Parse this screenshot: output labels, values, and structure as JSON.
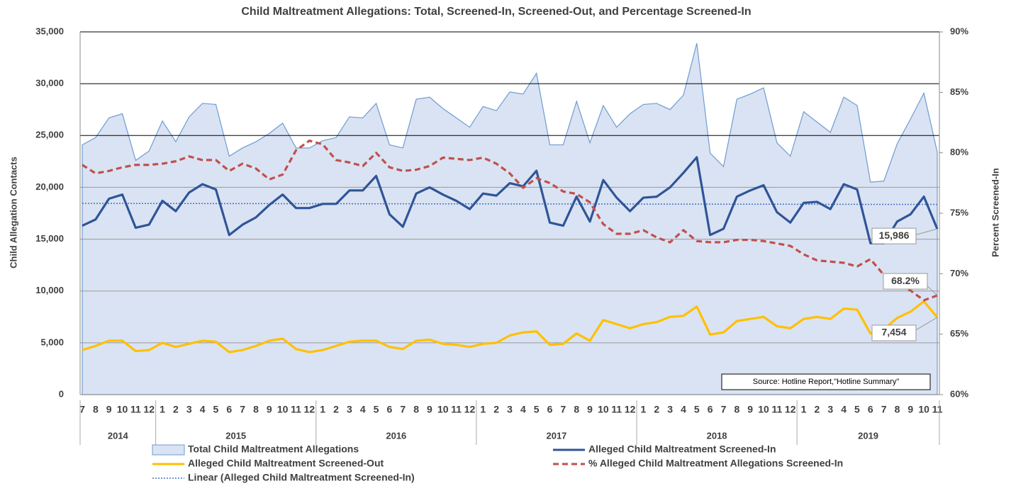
{
  "chart_data": {
    "type": "line",
    "title": "Child Maltreatment Allegations: Total, Screened-In, Screened-Out, and Percentage Screened-In",
    "y_label": "Child Allegation Contacts",
    "y2_label": "Percent Screened-In",
    "source": "Source: Hotline Report,\"Hotline Summary\"",
    "groups": [
      {
        "name": "2014",
        "categories": [
          "7",
          "8",
          "9",
          "10",
          "11",
          "12"
        ]
      },
      {
        "name": "2015",
        "categories": [
          "1",
          "2",
          "3",
          "4",
          "5",
          "6",
          "7",
          "8",
          "9",
          "10",
          "11",
          "12"
        ]
      },
      {
        "name": "2016",
        "categories": [
          "1",
          "2",
          "3",
          "4",
          "5",
          "6",
          "7",
          "8",
          "9",
          "10",
          "11",
          "12"
        ]
      },
      {
        "name": "2017",
        "categories": [
          "1",
          "2",
          "3",
          "4",
          "5",
          "6",
          "7",
          "8",
          "9",
          "10",
          "11",
          "12"
        ]
      },
      {
        "name": "2018",
        "categories": [
          "1",
          "2",
          "3",
          "4",
          "5",
          "6",
          "7",
          "8",
          "9",
          "10",
          "11",
          "12"
        ]
      },
      {
        "name": "2019",
        "categories": [
          "1",
          "2",
          "3",
          "4",
          "5",
          "6",
          "7",
          "8",
          "9",
          "10",
          "11"
        ]
      }
    ],
    "ylim": [
      0,
      35000
    ],
    "yticks": [
      0,
      {
        "value": 5000,
        "label": "5,000"
      },
      {
        "value": 10000,
        "label": "10,000"
      },
      {
        "value": 15000,
        "label": "15,000"
      },
      {
        "value": 20000,
        "label": "20,000"
      },
      {
        "value": 25000,
        "label": "25,000"
      },
      {
        "value": 30000,
        "label": "30,000"
      },
      {
        "value": 35000,
        "label": "35,000"
      }
    ],
    "y2lim": [
      60,
      90
    ],
    "y2ticks": [
      {
        "value": 60,
        "label": "60%"
      },
      {
        "value": 65,
        "label": "65%"
      },
      {
        "value": 70,
        "label": "70%"
      },
      {
        "value": 75,
        "label": "75%"
      },
      {
        "value": 80,
        "label": "80%"
      },
      {
        "value": 85,
        "label": "85%"
      },
      {
        "value": 90,
        "label": "90%"
      }
    ],
    "grid": true,
    "series": [
      {
        "name": "Total Child Maltreatment Allegations",
        "kind": "area",
        "color": "#6f9bd1",
        "fill": "#dae3f3",
        "values": [
          24100,
          24800,
          26700,
          27100,
          22600,
          23500,
          26400,
          24400,
          26800,
          28100,
          28000,
          23000,
          23800,
          24400,
          25200,
          26200,
          23800,
          23800,
          24500,
          24800,
          26800,
          26700,
          28100,
          24100,
          23800,
          28500,
          28700,
          27600,
          26700,
          25800,
          27800,
          27400,
          29200,
          29000,
          31000,
          24100,
          24100,
          28300,
          24300,
          27900,
          25800,
          27100,
          28000,
          28100,
          27500,
          28900,
          33900,
          23300,
          22000,
          28500,
          29000,
          29600,
          24300,
          23000,
          27300,
          26300,
          25300,
          28700,
          27900,
          20500,
          20600,
          24200,
          26600,
          29100,
          23400
        ]
      },
      {
        "name": "Alleged Child Maltreatment Screened-In",
        "kind": "line",
        "color": "#2f5597",
        "values": [
          16300,
          16900,
          18900,
          19300,
          16100,
          16400,
          18700,
          17700,
          19500,
          20300,
          19800,
          15400,
          16400,
          17100,
          18300,
          19300,
          18000,
          18000,
          18400,
          18400,
          19700,
          19700,
          21100,
          17400,
          16200,
          19400,
          20000,
          19300,
          18700,
          17900,
          19400,
          19200,
          20400,
          20100,
          21600,
          16600,
          16300,
          19100,
          16700,
          20700,
          19000,
          17700,
          19000,
          19100,
          20000,
          21400,
          22900,
          15400,
          16000,
          19100,
          19700,
          20200,
          17600,
          16600,
          18500,
          18600,
          17900,
          20300,
          19800,
          14600,
          14600,
          16700,
          17400,
          19100,
          15986
        ],
        "value_labels": {
          "64": "15,986"
        }
      },
      {
        "name": "Alleged Child Maltreatment Screened-Out",
        "kind": "line",
        "color": "#ffc000",
        "values": [
          4300,
          4700,
          5200,
          5200,
          4200,
          4300,
          5000,
          4600,
          4900,
          5200,
          5100,
          4100,
          4300,
          4700,
          5200,
          5400,
          4400,
          4100,
          4300,
          4700,
          5100,
          5200,
          5200,
          4600,
          4400,
          5200,
          5300,
          4900,
          4800,
          4600,
          4900,
          5000,
          5700,
          6000,
          6100,
          4800,
          4900,
          5900,
          5200,
          7200,
          6800,
          6400,
          6800,
          7000,
          7500,
          7600,
          8500,
          5800,
          6000,
          7100,
          7300,
          7500,
          6600,
          6400,
          7300,
          7500,
          7300,
          8300,
          8200,
          5900,
          6300,
          7400,
          8000,
          9000,
          7454
        ],
        "value_labels": {
          "64": "7,454"
        }
      },
      {
        "name": "% Alleged Child Maltreatment Allegations Screened-In",
        "kind": "dashed",
        "color": "#c0504d",
        "axis": "y2",
        "values": [
          79.0,
          78.3,
          78.5,
          78.8,
          79.0,
          79.0,
          79.1,
          79.3,
          79.7,
          79.4,
          79.4,
          78.5,
          79.1,
          78.7,
          77.8,
          78.2,
          80.2,
          81.0,
          80.7,
          79.4,
          79.2,
          78.9,
          80.0,
          78.8,
          78.5,
          78.6,
          78.9,
          79.6,
          79.5,
          79.4,
          79.6,
          79.1,
          78.3,
          77.1,
          77.9,
          77.5,
          76.8,
          76.6,
          75.9,
          74.1,
          73.3,
          73.3,
          73.6,
          73.0,
          72.6,
          73.6,
          72.7,
          72.6,
          72.6,
          72.8,
          72.8,
          72.7,
          72.5,
          72.3,
          71.6,
          71.1,
          71.0,
          70.9,
          70.6,
          71.2,
          69.9,
          69.1,
          68.6,
          67.8,
          68.2
        ],
        "value_labels": {
          "64": "68.2%"
        }
      }
    ],
    "trendline": {
      "name": "Linear (Alleged Child Maltreatment Screened-In)",
      "color": "#4472c4",
      "start": 18450,
      "end": 18350
    }
  }
}
